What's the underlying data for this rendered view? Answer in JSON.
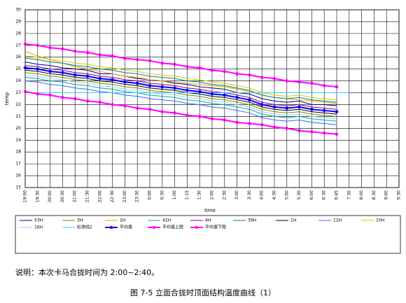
{
  "chart_data": {
    "type": "line",
    "x_label": "time",
    "y_label": "temp",
    "caption": "说明：本次卡马合拢时间为 2:00~2:40。",
    "title": "图 7-5 立面合拢时顶面结构温度曲线（1）",
    "ylim": [
      15,
      30
    ],
    "yticks": [
      15,
      16,
      17,
      18,
      19,
      20,
      21,
      22,
      23,
      24,
      25,
      26,
      27,
      28,
      29,
      30
    ],
    "grid": true,
    "legend": "bottom",
    "categories": [
      "19:00",
      "19:30",
      "20:00",
      "20:30",
      "21:00",
      "21:30",
      "22:00",
      "22:30",
      "23:00",
      "23:30",
      "0:00",
      "0:30",
      "1:00",
      "1:15",
      "1:30",
      "2:00",
      "2:30",
      "3:00",
      "3:30",
      "4:00",
      "4:30",
      "5:00",
      "5:30",
      "6:00",
      "6:30",
      "6:45",
      "7:30",
      "8:00",
      "8:30",
      "9:00",
      "9:30"
    ],
    "series": [
      {
        "name": "53H",
        "color": "#000080",
        "values": [
          25.6,
          25.4,
          25.3,
          25.1,
          25.0,
          24.9,
          24.6,
          24.6,
          24.4,
          24.2,
          24.1,
          24.0,
          23.8,
          23.7,
          23.5,
          23.4,
          23.3,
          23.0,
          22.9,
          22.5,
          22.3,
          22.2,
          22.3,
          22.0,
          22.0,
          21.9,
          null,
          null,
          null,
          null,
          null
        ]
      },
      {
        "name": "3H",
        "color": "#808000",
        "values": [
          24.7,
          24.6,
          24.4,
          24.3,
          24.1,
          24.0,
          23.8,
          23.7,
          23.5,
          23.4,
          23.2,
          23.1,
          23.0,
          22.8,
          22.7,
          22.5,
          22.4,
          22.2,
          22.0,
          21.6,
          21.4,
          21.3,
          21.4,
          21.2,
          21.1,
          21.0,
          null,
          null,
          null,
          null,
          null
        ]
      },
      {
        "name": "2H",
        "color": "#ff9900",
        "values": [
          26.5,
          26.1,
          25.8,
          25.5,
          25.2,
          25.0,
          24.8,
          24.6,
          24.4,
          24.3,
          24.1,
          24.0,
          23.9,
          23.8,
          23.7,
          23.6,
          23.5,
          23.3,
          23.1,
          22.8,
          22.6,
          22.5,
          22.4,
          22.3,
          22.2,
          22.1,
          null,
          null,
          null,
          null,
          null
        ]
      },
      {
        "name": "42H",
        "color": "#00aaaa",
        "values": [
          24.3,
          24.2,
          24.0,
          23.9,
          23.7,
          23.6,
          23.4,
          23.3,
          23.1,
          23.0,
          22.8,
          22.7,
          22.6,
          22.4,
          22.3,
          22.1,
          22.0,
          21.8,
          21.6,
          21.2,
          21.0,
          20.9,
          21.0,
          20.8,
          20.7,
          20.6,
          null,
          null,
          null,
          null,
          null
        ]
      },
      {
        "name": "4H",
        "color": "#800080",
        "values": [
          25.3,
          25.2,
          25.0,
          24.9,
          24.7,
          24.6,
          24.4,
          24.3,
          24.1,
          24.0,
          23.8,
          23.7,
          23.6,
          23.4,
          23.3,
          23.1,
          23.0,
          22.8,
          22.6,
          22.2,
          22.0,
          21.9,
          22.0,
          21.8,
          21.7,
          21.6,
          null,
          null,
          null,
          null,
          null
        ]
      },
      {
        "name": "39H",
        "color": "#008080",
        "values": [
          25.9,
          25.8,
          25.6,
          25.5,
          25.3,
          25.2,
          25.0,
          24.9,
          24.7,
          24.6,
          24.4,
          24.3,
          24.2,
          24.0,
          23.9,
          23.7,
          23.6,
          23.4,
          23.2,
          22.8,
          22.6,
          22.5,
          22.6,
          22.4,
          22.3,
          22.2,
          null,
          null,
          null,
          null,
          null
        ]
      },
      {
        "name": "1H",
        "color": "#000000",
        "values": [
          24.9,
          24.8,
          24.6,
          24.5,
          24.3,
          24.2,
          24.0,
          23.9,
          23.7,
          23.6,
          23.4,
          23.3,
          23.2,
          23.0,
          22.9,
          22.7,
          22.6,
          22.4,
          22.2,
          21.8,
          21.6,
          21.5,
          21.6,
          21.4,
          21.3,
          21.2,
          null,
          null,
          null,
          null,
          null
        ]
      },
      {
        "name": "12H",
        "color": "#3366ff",
        "values": [
          24.0,
          23.9,
          23.7,
          23.6,
          23.4,
          23.3,
          23.1,
          23.0,
          22.8,
          22.7,
          22.5,
          22.4,
          22.3,
          22.1,
          22.0,
          21.8,
          21.7,
          21.5,
          21.3,
          20.9,
          20.7,
          20.6,
          20.7,
          20.5,
          20.4,
          20.3,
          null,
          null,
          null,
          null,
          null
        ]
      },
      {
        "name": "10H",
        "color": "#cccc00",
        "values": [
          26.1,
          26.0,
          25.8,
          25.7,
          25.5,
          25.4,
          25.2,
          25.1,
          24.9,
          24.8,
          24.6,
          24.5,
          24.4,
          24.2,
          24.1,
          23.9,
          23.8,
          23.6,
          23.4,
          23.0,
          22.8,
          22.7,
          22.8,
          22.6,
          22.5,
          22.4,
          null,
          null,
          null,
          null,
          null
        ]
      },
      {
        "name": "16H",
        "color": "#99ccff",
        "values": [
          24.5,
          24.4,
          24.2,
          24.1,
          23.9,
          23.8,
          23.6,
          23.5,
          23.3,
          23.2,
          23.0,
          22.9,
          22.8,
          22.6,
          22.5,
          22.3,
          22.2,
          22.0,
          21.8,
          21.4,
          21.2,
          21.1,
          21.2,
          21.0,
          20.9,
          20.8,
          null,
          null,
          null,
          null,
          null
        ]
      },
      {
        "name": "标准线2",
        "color": "#33ccff",
        "values": [
          23,
          23,
          23,
          23,
          23,
          23,
          23,
          23,
          23,
          23,
          23,
          23,
          23,
          23,
          23,
          23,
          23,
          23,
          23,
          23,
          23,
          23,
          23,
          23,
          23,
          23,
          23,
          null,
          null,
          null,
          null
        ]
      },
      {
        "name": "平均值",
        "color": "#0000ff",
        "marker": true,
        "values": [
          25.1,
          25.0,
          24.8,
          24.7,
          24.5,
          24.4,
          24.2,
          24.1,
          23.9,
          23.8,
          23.6,
          23.5,
          23.4,
          23.2,
          23.1,
          22.9,
          22.8,
          22.6,
          22.4,
          22.0,
          21.8,
          21.7,
          21.8,
          21.6,
          21.5,
          21.4,
          null,
          null,
          null,
          null,
          null
        ]
      },
      {
        "name": "平均值上限",
        "color": "#ff00ff",
        "marker": true,
        "values": [
          27.1,
          27.0,
          26.8,
          26.7,
          26.5,
          26.4,
          26.2,
          26.1,
          25.9,
          25.8,
          25.7,
          25.5,
          25.4,
          25.2,
          25.1,
          24.9,
          24.8,
          24.6,
          24.5,
          24.3,
          24.2,
          24.0,
          23.9,
          23.8,
          23.6,
          23.5,
          null,
          null,
          null,
          null,
          null
        ]
      },
      {
        "name": "平均值下限",
        "color": "#ff00ff",
        "marker": true,
        "values": [
          23.1,
          22.9,
          22.8,
          22.6,
          22.5,
          22.3,
          22.2,
          22.0,
          21.9,
          21.7,
          21.6,
          21.4,
          21.3,
          21.1,
          21.0,
          20.8,
          20.7,
          20.5,
          20.4,
          20.3,
          20.1,
          20.0,
          19.8,
          19.7,
          19.6,
          19.5,
          null,
          null,
          null,
          null,
          null
        ]
      }
    ]
  }
}
